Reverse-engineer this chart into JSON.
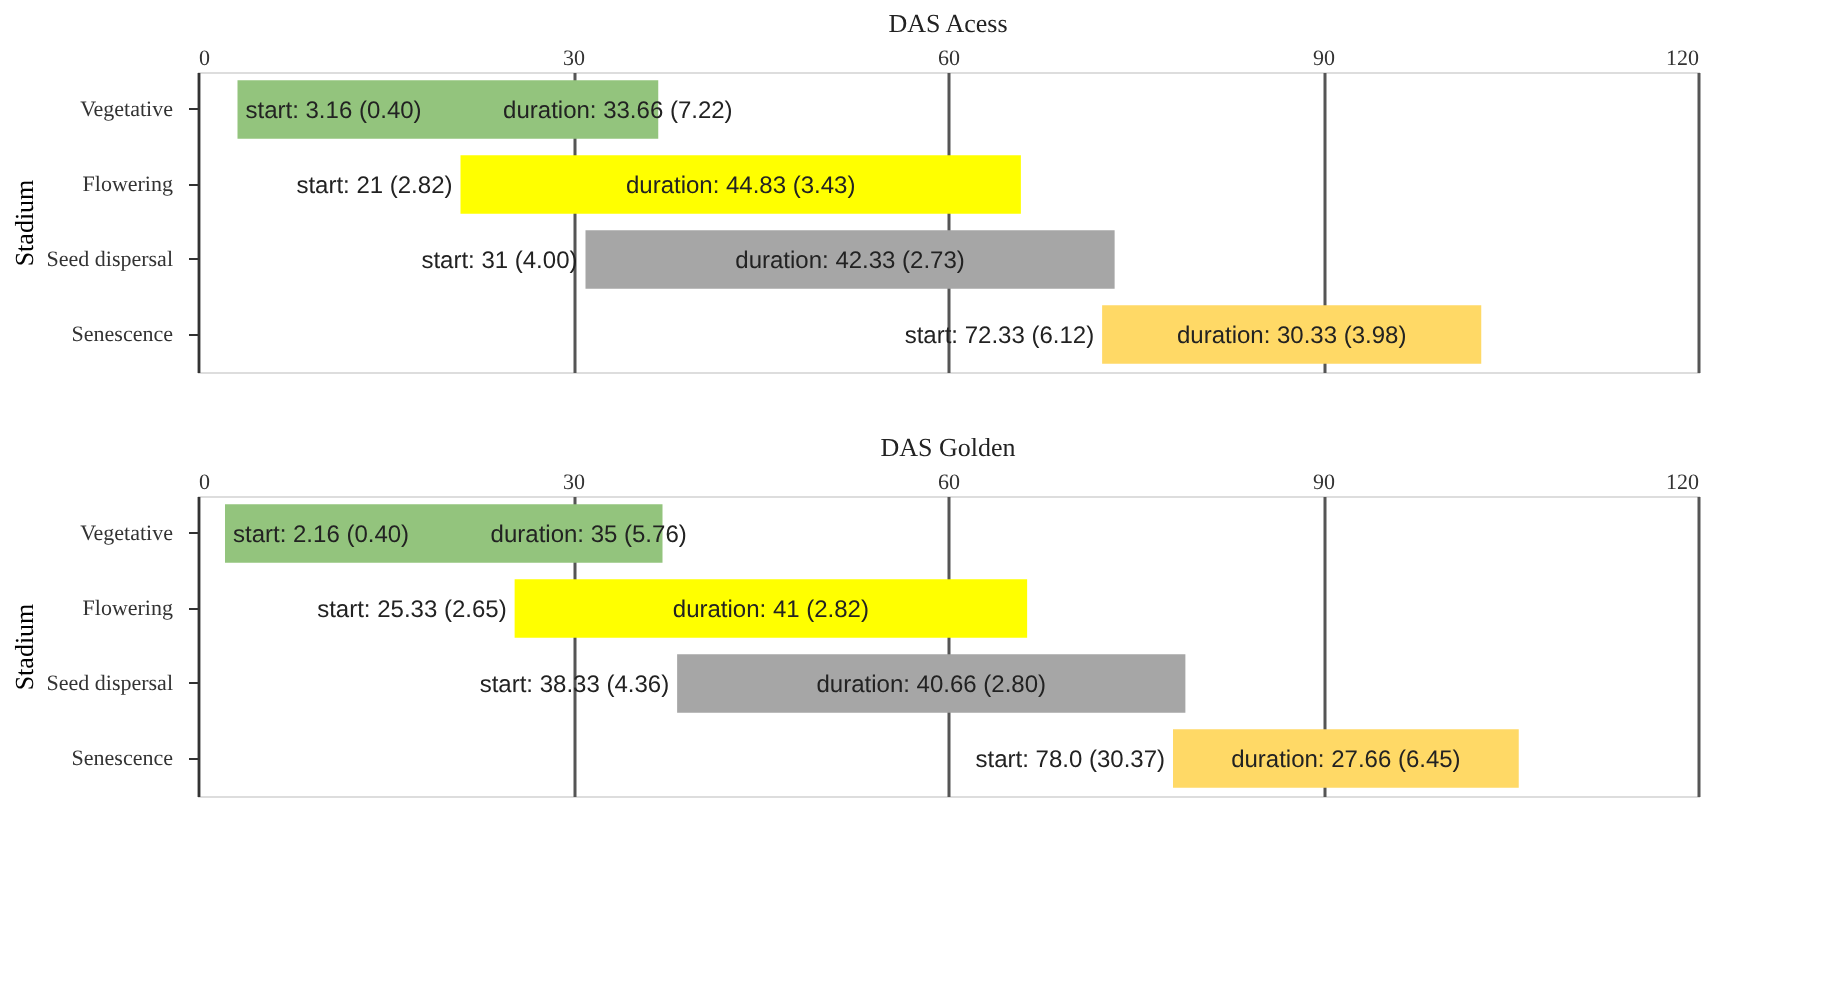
{
  "chart_data": [
    {
      "type": "bar",
      "orientation": "horizontal",
      "title": "DAS Acess",
      "ylabel": "Stadium",
      "categories": [
        "Vegetative",
        "Flowering",
        "Seed dispersal",
        "Senescence"
      ],
      "base": [
        3.16,
        21,
        31,
        72.33
      ],
      "values": [
        33.66,
        44.83,
        42.33,
        30.33
      ],
      "colors": [
        "#93c47d",
        "#ffff00",
        "#a6a6a6",
        "#ffd966"
      ],
      "value_labels": [
        "duration: 33.66 (7.22)",
        "duration: 44.83 (3.43)",
        "duration: 42.33 (2.73)",
        "duration: 30.33 (3.98)"
      ],
      "annotations": [
        {
          "text": "start: 3.16 (0.40)",
          "x": 3.16,
          "y": "Vegetative"
        },
        {
          "text": "start: 21 (2.82)",
          "x": 21,
          "y": "Flowering"
        },
        {
          "text": "start: 31 (4.00)",
          "x": 31,
          "y": "Seed dispersal"
        },
        {
          "text": "start: 72.33 (6.12)",
          "x": 72.33,
          "y": "Senescence"
        }
      ],
      "xlim": [
        0,
        120
      ],
      "xticks": [
        0,
        30,
        60,
        90,
        120
      ],
      "grid": "x"
    },
    {
      "type": "bar",
      "orientation": "horizontal",
      "title": "DAS Golden",
      "ylabel": "Stadium",
      "categories": [
        "Vegetative",
        "Flowering",
        "Seed dispersal",
        "Senescence"
      ],
      "base": [
        2.16,
        25.33,
        38.33,
        78.0
      ],
      "values": [
        35,
        41,
        40.66,
        27.66
      ],
      "colors": [
        "#93c47d",
        "#ffff00",
        "#a6a6a6",
        "#ffd966"
      ],
      "value_labels": [
        "duration: 35 (5.76)",
        "duration: 41 (2.82)",
        "duration: 40.66 (2.80)",
        "duration: 27.66 (6.45)"
      ],
      "annotations": [
        {
          "text": "start: 2.16 (0.40)",
          "x": 2.16,
          "y": "Vegetative"
        },
        {
          "text": "start: 25.33 (2.65)",
          "x": 25.33,
          "y": "Flowering"
        },
        {
          "text": "start: 38.33 (4.36)",
          "x": 38.33,
          "y": "Seed dispersal"
        },
        {
          "text": "start: 78.0 (30.37)",
          "x": 78.0,
          "y": "Senescence"
        }
      ],
      "xlim": [
        0,
        120
      ],
      "xticks": [
        0,
        30,
        60,
        90,
        120
      ],
      "grid": "x"
    }
  ]
}
